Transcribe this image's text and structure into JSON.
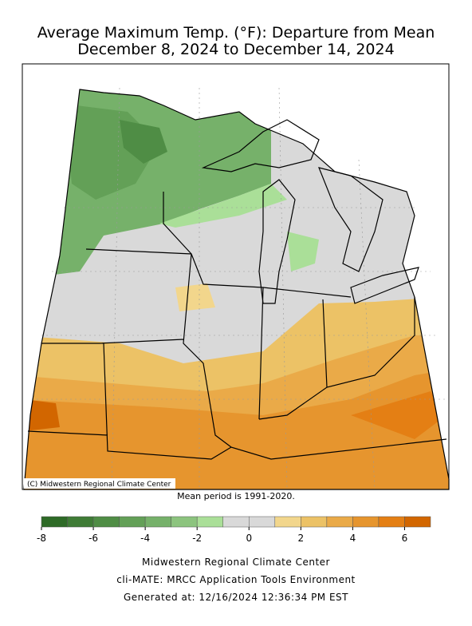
{
  "header": {
    "title_lines": [
      "Average Maximum Temp. (°F): Departure from Mean",
      "December 8, 2024 to December 14, 2024"
    ]
  },
  "map": {
    "credit": "(C) Midwestern Regional Climate Center",
    "note": "Mean period is 1991-2020."
  },
  "colorbar": {
    "bins": [
      -8,
      -7,
      -6,
      -5,
      -4,
      -3,
      -2,
      -1,
      0,
      1,
      2,
      3,
      4,
      5,
      6,
      7
    ],
    "colors": [
      "#2e6b27",
      "#3f7c36",
      "#4f8d45",
      "#63a057",
      "#76b16a",
      "#8cc47e",
      "#aadf98",
      "#d9d9d9",
      "#d9d9d9",
      "#f2d68c",
      "#ecc266",
      "#eaaa48",
      "#e6952e",
      "#e47f14",
      "#d26600"
    ],
    "ticks": [
      -8,
      -6,
      -4,
      -2,
      0,
      2,
      4,
      6
    ]
  },
  "footer": {
    "lines": [
      "Midwestern Regional Climate Center",
      "cli-MATE: MRCC Application Tools Environment",
      "Generated at: 12/16/2024 12:36:34 PM EST"
    ]
  }
}
